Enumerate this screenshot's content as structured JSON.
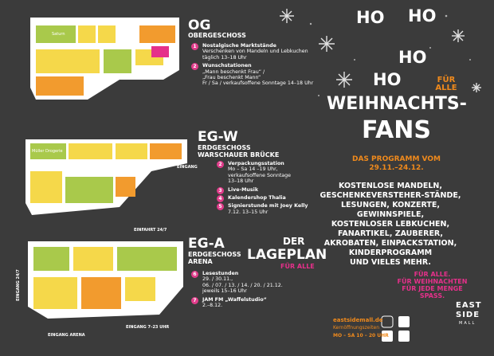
{
  "sections": [
    {
      "code": "OG",
      "name": "OBERGESCHOSS",
      "items": [
        {
          "num": "1",
          "lines": [
            "Nostalgische Marktstände",
            "Verschenken von Mandeln und Lebkuchen",
            "täglich 13–18 Uhr"
          ]
        },
        {
          "num": "2",
          "lines": [
            "Wunschstationen",
            "„Mann beschenkt Frau“ /",
            "„Frau beschenkt Mann“",
            "Fr / Sa / verkaufsoffene Sonntage 14–18 Uhr"
          ]
        }
      ]
    },
    {
      "code": "EG-W",
      "name": "ERDGESCHOSS",
      "sub": "WARSCHAUER BRÜCKE",
      "items": [
        {
          "num": "2",
          "lines": [
            "Verpackungsstation",
            "Mo – Sa 14 –19 Uhr,",
            "verkaufsoffene Sonntage",
            "13–18 Uhr"
          ]
        },
        {
          "num": "3",
          "lines": [
            "Live-Musik"
          ]
        },
        {
          "num": "4",
          "lines": [
            "Kalendershop Thalia"
          ]
        },
        {
          "num": "5",
          "lines": [
            "Signierstunde mit Joey Kelly",
            "7.12. 13–15 Uhr"
          ]
        }
      ]
    },
    {
      "code": "EG-A",
      "name": "ERDGESCHOSS",
      "sub": "ARENA",
      "items": [
        {
          "num": "6",
          "lines": [
            "Lesestunden",
            "29. / 30.11.,",
            "06. / 07. / 13. / 14. / 20. / 21.12.",
            "jeweils 15–16 Uhr"
          ]
        },
        {
          "num": "7",
          "lines": [
            "JAM FM „Waffelstudio“",
            "2.–8.12."
          ]
        }
      ]
    }
  ],
  "map_labels": {
    "saturn": "Saturn",
    "mueller": "Müller Drogerie",
    "eingang": "EINGANG",
    "einfahrt": "EINFAHRT 24/7",
    "eingang247": "EINGANG 24/7",
    "eingang723": "EINGANG 7–23 UHR",
    "eingang_arena": "EINGANG ARENA"
  },
  "lageplan": {
    "der": "DER",
    "title": "LAGEPLAN",
    "fuer": "FÜR ALLE"
  },
  "hero": {
    "ho": [
      "HO",
      "HO",
      "HO",
      "HO"
    ],
    "fuer_alle": "FÜR ALLE",
    "title1": "WEIHNACHTS-",
    "title2": "FANS",
    "program": "DAS PROGRAMM VOM",
    "dates": "29.11.–24.12."
  },
  "features": [
    "KOSTENLOSE MANDELN,",
    "GESCHENKEVERSTEHER-STÄNDE,",
    "LESUNGEN, KONZERTE,",
    "GEWINNSPIELE,",
    "KOSTENLOSER LEBKUCHEN,",
    "FANARTIKEL, ZAUBERER,",
    "AKROBATEN, EINPACKSTATION,",
    "KINDERPROGRAMM",
    "UND VIELES MEHR."
  ],
  "slogan": [
    "FÜR ALLE.",
    "FÜR WEIHNACHTEN",
    "FÜR JEDE MENGE",
    "SPASS."
  ],
  "footer": {
    "website": "eastsidemall.de",
    "hours_label": "Kernöffnungszeiten",
    "hours": "MO – SA 10 – 20 UHR",
    "logo1": "EAST",
    "logo2": "SIDE",
    "logo3": "MALL"
  }
}
